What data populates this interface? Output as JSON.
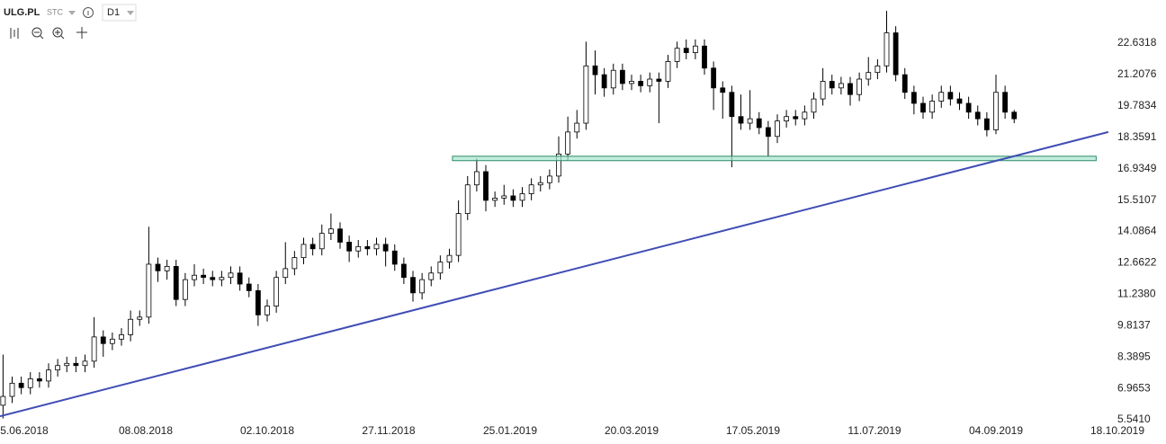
{
  "toolbar": {
    "symbol": "ULG.PL",
    "group": "STC",
    "interval": "D1"
  },
  "chart_data": {
    "type": "candlestick",
    "x": [
      1,
      4,
      7,
      10,
      13,
      16,
      19,
      22,
      25,
      28,
      31,
      34,
      37,
      40,
      43,
      46,
      49,
      52,
      55,
      58,
      61,
      64,
      67,
      70,
      73,
      76,
      79,
      82,
      85,
      88,
      91,
      94,
      97,
      100,
      103,
      106,
      109,
      112,
      115,
      118,
      121,
      124,
      127,
      130,
      133,
      136,
      139,
      142,
      145,
      148,
      151,
      154,
      157,
      160,
      163,
      166,
      169,
      172,
      175,
      178,
      181,
      184,
      187,
      190,
      193,
      196,
      199,
      202,
      205,
      208,
      211,
      214,
      217,
      220,
      223,
      226,
      229,
      232,
      235,
      238,
      241,
      244,
      247,
      250,
      253,
      256,
      259,
      262,
      265,
      268,
      271,
      274,
      277,
      280,
      283,
      286,
      289,
      292,
      295,
      298,
      301,
      304,
      307,
      310,
      313,
      316,
      319,
      322,
      325,
      328,
      331,
      334
    ],
    "open": [
      6.2,
      6.6,
      7.2,
      7.0,
      7.4,
      7.3,
      7.8,
      8.0,
      8.1,
      8.0,
      8.2,
      9.3,
      9.0,
      9.2,
      9.4,
      10.1,
      10.2,
      12.6,
      12.3,
      12.5,
      11.0,
      11.9,
      12.1,
      12.0,
      11.9,
      12.0,
      12.2,
      11.7,
      11.4,
      10.3,
      10.7,
      12.0,
      12.4,
      12.9,
      13.5,
      13.3,
      14.0,
      14.2,
      13.6,
      13.2,
      13.4,
      13.3,
      13.5,
      13.2,
      12.6,
      12.0,
      11.3,
      11.9,
      12.2,
      12.7,
      13.0,
      14.9,
      16.2,
      16.8,
      15.5,
      15.6,
      15.7,
      15.5,
      15.8,
      16.2,
      16.3,
      16.6,
      17.6,
      18.6,
      19.0,
      21.6,
      21.2,
      20.6,
      21.4,
      20.8,
      20.9,
      20.7,
      21.0,
      20.9,
      21.8,
      22.4,
      22.2,
      22.5,
      21.5,
      20.6,
      20.4,
      19.3,
      19.0,
      19.2,
      18.8,
      18.4,
      19.1,
      19.3,
      19.2,
      19.5,
      20.1,
      20.9,
      20.6,
      20.8,
      20.3,
      21.0,
      21.3,
      21.6,
      23.1,
      21.2,
      20.4,
      19.9,
      19.5,
      20.0,
      20.4,
      20.1,
      19.9,
      19.5,
      19.2,
      18.7,
      20.4,
      19.5
    ],
    "high": [
      8.5,
      7.5,
      7.5,
      7.7,
      7.7,
      8.1,
      8.3,
      8.4,
      8.4,
      8.5,
      10.2,
      9.6,
      9.5,
      9.7,
      10.5,
      10.5,
      14.3,
      12.9,
      12.8,
      12.8,
      12.2,
      12.6,
      12.4,
      12.3,
      12.3,
      12.5,
      12.5,
      12.0,
      11.7,
      11.0,
      12.3,
      13.6,
      13.2,
      13.8,
      13.8,
      14.4,
      14.9,
      14.5,
      13.9,
      13.7,
      13.7,
      13.8,
      13.8,
      13.5,
      12.9,
      12.3,
      12.2,
      12.5,
      13.0,
      13.3,
      15.5,
      16.6,
      17.4,
      17.1,
      15.9,
      16.2,
      16.0,
      16.1,
      16.5,
      16.6,
      16.9,
      18.4,
      19.3,
      19.6,
      22.7,
      22.3,
      21.5,
      21.7,
      21.7,
      21.2,
      21.2,
      21.3,
      21.3,
      22.1,
      22.7,
      22.8,
      22.8,
      22.8,
      21.8,
      20.9,
      20.7,
      20.3,
      20.5,
      19.5,
      19.1,
      19.4,
      19.6,
      19.6,
      19.8,
      20.4,
      21.5,
      21.2,
      21.1,
      21.1,
      21.3,
      22.0,
      21.9,
      24.1,
      23.4,
      21.5,
      20.7,
      20.2,
      20.3,
      20.7,
      20.7,
      20.4,
      20.2,
      19.8,
      19.5,
      21.2,
      20.7,
      19.6
    ],
    "low": [
      5.6,
      6.3,
      6.7,
      6.7,
      7.0,
      7.0,
      7.5,
      7.7,
      7.7,
      7.7,
      7.9,
      8.4,
      8.7,
      8.9,
      9.1,
      9.8,
      9.9,
      11.8,
      11.9,
      10.7,
      10.7,
      11.6,
      11.7,
      11.6,
      11.6,
      11.7,
      11.4,
      11.1,
      9.8,
      10.0,
      10.4,
      11.7,
      12.1,
      12.6,
      13.0,
      13.0,
      13.7,
      13.3,
      12.7,
      12.9,
      13.0,
      13.0,
      12.5,
      12.3,
      11.7,
      10.9,
      11.0,
      11.6,
      11.9,
      12.4,
      12.7,
      14.6,
      15.9,
      15.0,
      15.2,
      15.3,
      15.2,
      15.2,
      15.5,
      15.9,
      16.0,
      16.3,
      17.3,
      18.3,
      18.7,
      20.3,
      20.2,
      20.3,
      20.5,
      20.5,
      20.4,
      20.4,
      19.0,
      20.6,
      21.5,
      21.9,
      21.9,
      21.2,
      19.6,
      19.2,
      17.0,
      18.7,
      18.7,
      18.5,
      17.5,
      18.1,
      18.8,
      18.9,
      18.9,
      19.2,
      19.8,
      20.3,
      20.3,
      19.8,
      20.0,
      20.7,
      21.0,
      21.3,
      20.9,
      20.1,
      19.4,
      19.2,
      19.2,
      19.7,
      19.8,
      19.6,
      19.2,
      18.9,
      18.4,
      18.5,
      19.2,
      19.0
    ],
    "close": [
      6.6,
      7.2,
      7.0,
      7.4,
      7.3,
      7.8,
      8.0,
      8.1,
      8.0,
      8.2,
      9.3,
      9.0,
      9.2,
      9.4,
      10.1,
      10.2,
      12.6,
      12.3,
      12.5,
      11.0,
      11.9,
      12.1,
      12.0,
      11.9,
      12.0,
      12.2,
      11.7,
      11.4,
      10.3,
      10.7,
      12.0,
      12.4,
      12.9,
      13.5,
      13.3,
      14.0,
      14.2,
      13.6,
      13.2,
      13.4,
      13.3,
      13.5,
      13.2,
      12.6,
      12.0,
      11.3,
      11.9,
      12.2,
      12.7,
      13.0,
      14.9,
      16.2,
      16.8,
      15.5,
      15.6,
      15.7,
      15.5,
      15.8,
      16.2,
      16.3,
      16.6,
      17.6,
      18.6,
      19.0,
      21.6,
      21.2,
      20.6,
      21.4,
      20.8,
      20.9,
      20.7,
      21.0,
      20.9,
      21.8,
      22.4,
      22.2,
      22.5,
      21.5,
      20.6,
      20.4,
      19.3,
      19.0,
      19.2,
      18.8,
      18.4,
      19.1,
      19.3,
      19.2,
      19.5,
      20.1,
      20.9,
      20.6,
      20.8,
      20.3,
      21.0,
      21.3,
      21.6,
      23.1,
      21.2,
      20.4,
      19.9,
      19.5,
      20.0,
      20.4,
      20.1,
      19.9,
      19.5,
      19.2,
      18.7,
      20.4,
      19.5,
      19.2
    ],
    "up_color": "#ffffff",
    "down_color": "#000000",
    "outline_color": "#000000",
    "trendline": {
      "x": [
        0,
        365
      ],
      "y": [
        5.7,
        18.6
      ],
      "color": "#3f4db5"
    },
    "zone": {
      "x": [
        149,
        361
      ],
      "y": [
        17.3,
        17.5
      ],
      "color": "#a8e6cf",
      "border": "#2e8b6a"
    },
    "xlim": [
      0,
      368
    ],
    "ylim": [
      5.42,
      24.59
    ],
    "xticks": [
      {
        "value": 8,
        "label": "5.06.2018"
      },
      {
        "value": 48,
        "label": "08.08.2018"
      },
      {
        "value": 88,
        "label": "02.10.2018"
      },
      {
        "value": 128,
        "label": "27.11.2018"
      },
      {
        "value": 168,
        "label": "25.01.2019"
      },
      {
        "value": 208,
        "label": "20.03.2019"
      },
      {
        "value": 248,
        "label": "17.05.2019"
      },
      {
        "value": 288,
        "label": "11.07.2019"
      },
      {
        "value": 328,
        "label": "04.09.2019"
      },
      {
        "value": 368,
        "label": "18.10.2019"
      }
    ],
    "yticks": [
      22.6318,
      21.2076,
      19.7834,
      18.3591,
      16.9349,
      15.5107,
      14.0864,
      12.6622,
      {
        "value": 11.238,
        "label": "11.2380"
      },
      9.8137,
      8.3895,
      6.9653,
      {
        "value": 5.541,
        "label": "5.5410"
      }
    ]
  }
}
